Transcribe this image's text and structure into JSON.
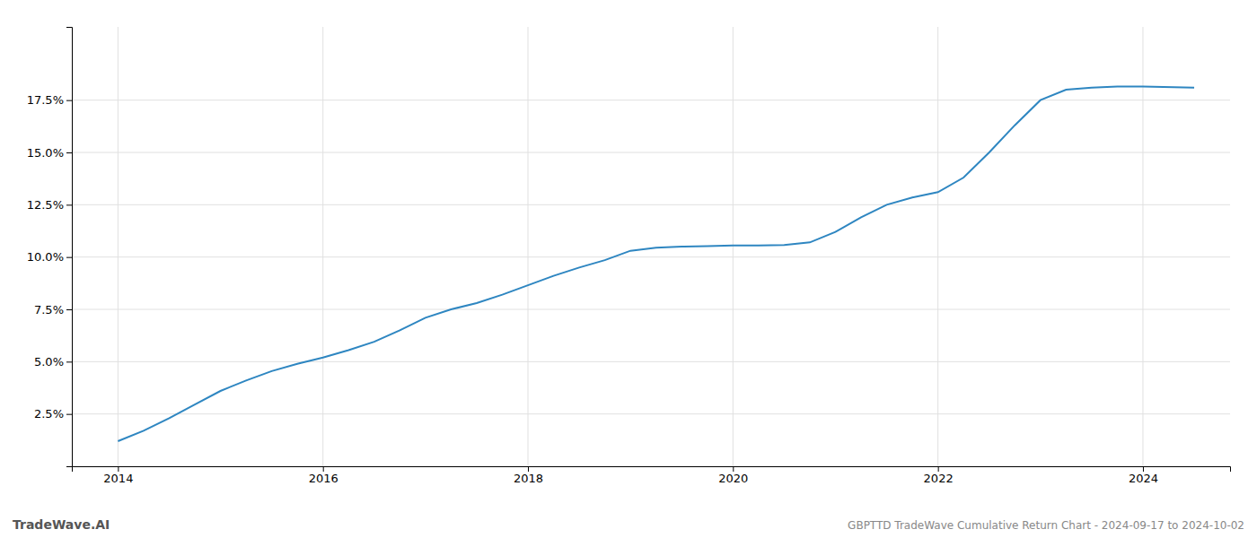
{
  "chart_data": {
    "type": "line",
    "title": "GBPTTD TradeWave Cumulative Return Chart - 2024-09-17 to 2024-10-02",
    "annotations": [
      "TradeWave.AI"
    ],
    "x": [
      2014.0,
      2014.25,
      2014.5,
      2014.75,
      2015.0,
      2015.25,
      2015.5,
      2015.75,
      2016.0,
      2016.25,
      2016.5,
      2016.75,
      2017.0,
      2017.25,
      2017.5,
      2017.75,
      2018.0,
      2018.25,
      2018.5,
      2018.75,
      2019.0,
      2019.25,
      2019.5,
      2019.75,
      2020.0,
      2020.25,
      2020.5,
      2020.75,
      2021.0,
      2021.25,
      2021.5,
      2021.75,
      2022.0,
      2022.25,
      2022.5,
      2022.75,
      2023.0,
      2023.25,
      2023.5,
      2023.75,
      2024.0,
      2024.5
    ],
    "values": [
      1.2,
      1.7,
      2.3,
      2.95,
      3.6,
      4.1,
      4.55,
      4.9,
      5.2,
      5.55,
      5.95,
      6.5,
      7.1,
      7.5,
      7.8,
      8.2,
      8.65,
      9.1,
      9.5,
      9.85,
      10.3,
      10.45,
      10.5,
      10.52,
      10.55,
      10.55,
      10.58,
      10.7,
      11.2,
      11.9,
      12.5,
      12.85,
      13.1,
      13.8,
      15.0,
      16.3,
      17.5,
      18.0,
      18.1,
      18.15,
      18.15,
      18.1
    ],
    "color": "#2e86c1",
    "xlim": [
      2013.55,
      2024.85
    ],
    "ylim": [
      0.0,
      21.0
    ],
    "xticks": [
      2014,
      2016,
      2018,
      2020,
      2022,
      2024
    ],
    "yticks": [
      {
        "value": 2.5,
        "label": "2.5%"
      },
      {
        "value": 5.0,
        "label": "5.0%"
      },
      {
        "value": 7.5,
        "label": "7.5%"
      },
      {
        "value": 10.0,
        "label": "10.0%"
      },
      {
        "value": 12.5,
        "label": "12.5%"
      },
      {
        "value": 15.0,
        "label": "15.0%"
      },
      {
        "value": 17.5,
        "label": "17.5%"
      }
    ],
    "grid": true
  }
}
